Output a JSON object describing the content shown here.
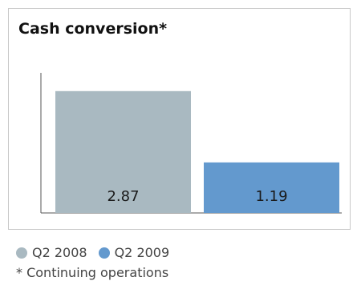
{
  "chart_data": {
    "type": "bar",
    "title": "Cash conversion*",
    "categories": [
      "Q2 2008",
      "Q2 2009"
    ],
    "values": [
      2.87,
      1.19
    ],
    "value_labels": [
      "2.87",
      "1.19"
    ],
    "colors": [
      "#a9b9c1",
      "#6399ce"
    ],
    "xlabel": "",
    "ylabel": "",
    "ylim": [
      0,
      3.3
    ],
    "grid": false,
    "legend": "bottom-left"
  },
  "legend": {
    "items": [
      {
        "label": "Q2 2008",
        "color": "#a9b9c1"
      },
      {
        "label": "Q2 2009",
        "color": "#6399ce"
      }
    ]
  },
  "footnote": "* Continuing operations"
}
